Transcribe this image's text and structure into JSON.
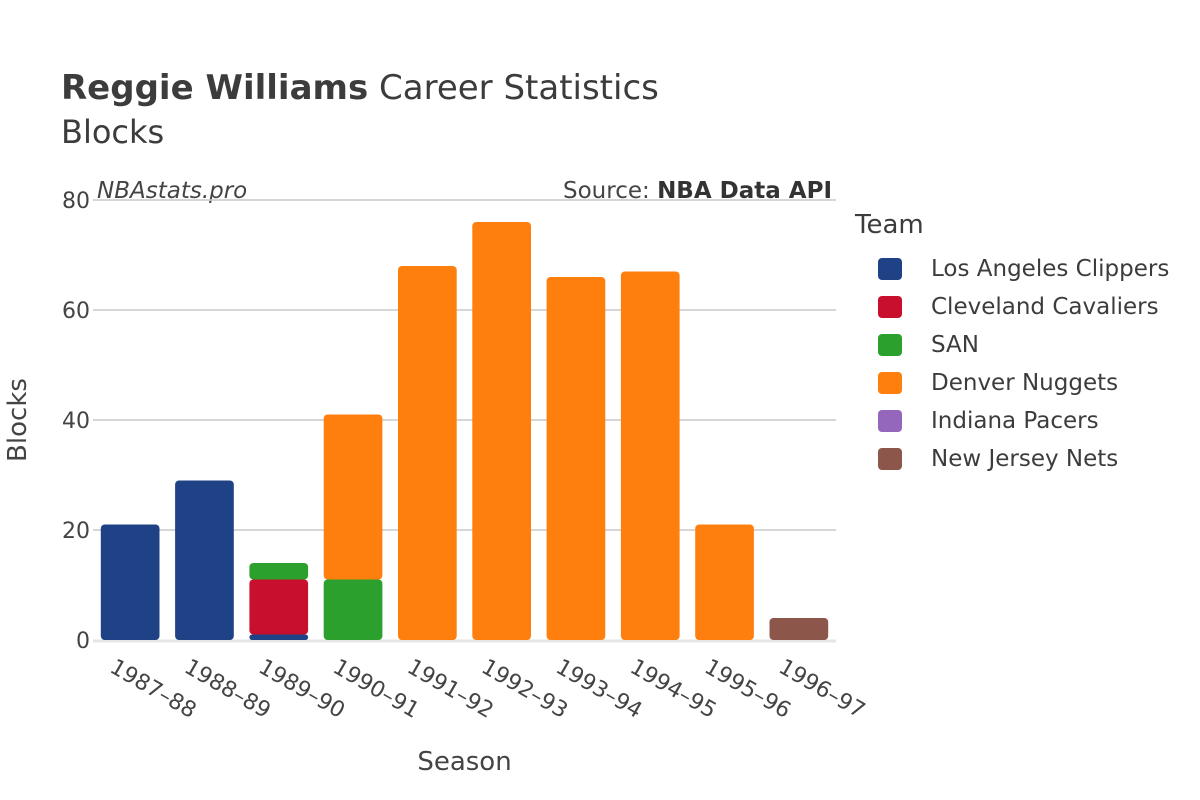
{
  "header": {
    "player": "Reggie Williams",
    "title_rest": " Career Statistics",
    "subtitle": "Blocks",
    "watermark": "NBAstats.pro",
    "source_prefix": "Source: ",
    "source_name": "NBA Data API"
  },
  "legend": {
    "title": "Team",
    "items": [
      {
        "label": "Los Angeles Clippers",
        "color": "#1f4287"
      },
      {
        "label": "Cleveland Cavaliers",
        "color": "#c8102e"
      },
      {
        "label": "SAN",
        "color": "#2ca02c"
      },
      {
        "label": "Denver Nuggets",
        "color": "#ff7f0e"
      },
      {
        "label": "Indiana Pacers",
        "color": "#9467bd"
      },
      {
        "label": "New Jersey Nets",
        "color": "#8c564b"
      }
    ]
  },
  "chart_data": {
    "type": "bar",
    "stacked": true,
    "title": "Reggie Williams Career Statistics",
    "subtitle": "Blocks",
    "xlabel": "Season",
    "ylabel": "Blocks",
    "ylim": [
      0,
      80
    ],
    "yticks": [
      0,
      20,
      40,
      60,
      80
    ],
    "grid": true,
    "legend_placement": "right",
    "categories": [
      "1987–88",
      "1988–89",
      "1989–90",
      "1990–91",
      "1991–92",
      "1992–93",
      "1993–94",
      "1994–95",
      "1995–96",
      "1996–97"
    ],
    "series": [
      {
        "name": "Los Angeles Clippers",
        "color": "#1f4287",
        "values": [
          21,
          29,
          1,
          0,
          0,
          0,
          0,
          0,
          0,
          0
        ]
      },
      {
        "name": "Cleveland Cavaliers",
        "color": "#c8102e",
        "values": [
          0,
          0,
          10,
          0,
          0,
          0,
          0,
          0,
          0,
          0
        ]
      },
      {
        "name": "SAN",
        "color": "#2ca02c",
        "values": [
          0,
          0,
          3,
          11,
          0,
          0,
          0,
          0,
          0,
          0
        ]
      },
      {
        "name": "Denver Nuggets",
        "color": "#ff7f0e",
        "values": [
          0,
          0,
          0,
          30,
          68,
          76,
          66,
          67,
          21,
          0
        ]
      },
      {
        "name": "Indiana Pacers",
        "color": "#9467bd",
        "values": [
          0,
          0,
          0,
          0,
          0,
          0,
          0,
          0,
          0,
          0
        ]
      },
      {
        "name": "New Jersey Nets",
        "color": "#8c564b",
        "values": [
          0,
          0,
          0,
          0,
          0,
          0,
          0,
          0,
          0,
          4
        ]
      }
    ]
  }
}
